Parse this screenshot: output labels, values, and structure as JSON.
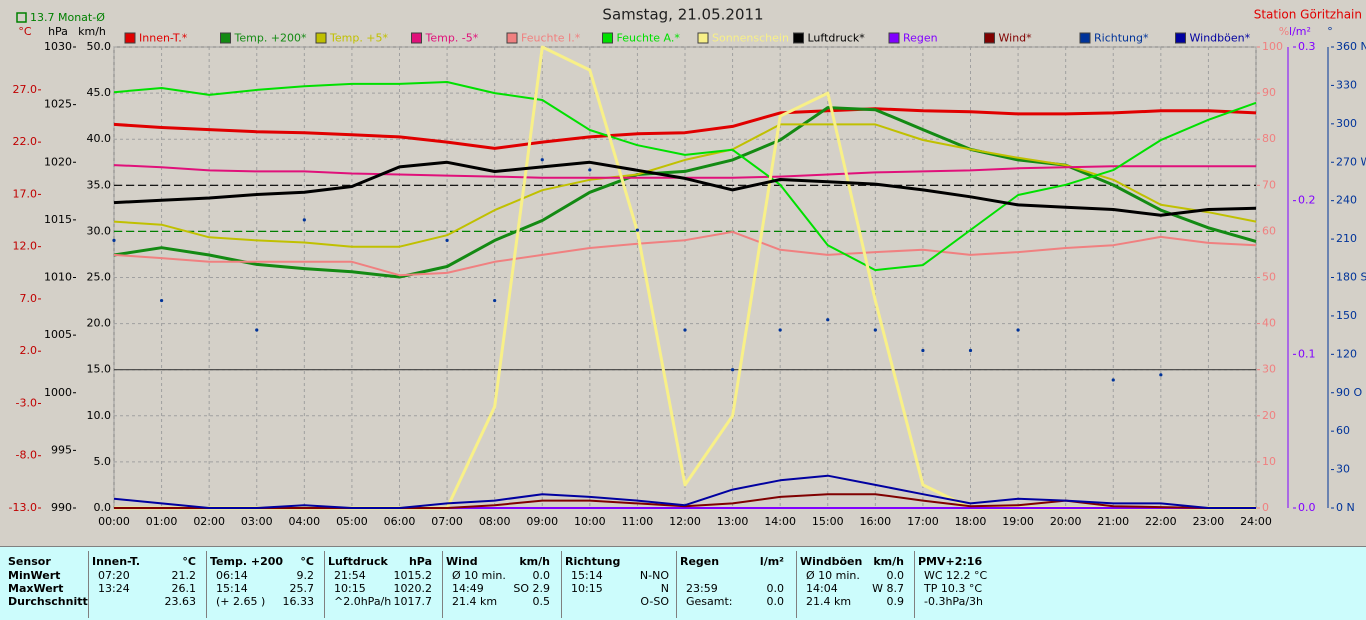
{
  "chart_data": {
    "type": "line",
    "title": "Samstag, 21.05.2011",
    "station": "Station Göritzhain",
    "annotation": "13.7 Monat-Ø",
    "annotation_color": "#008000",
    "grid": true,
    "xlim": [
      0,
      24
    ],
    "x": [
      0,
      1,
      2,
      3,
      4,
      5,
      6,
      7,
      8,
      9,
      10,
      11,
      12,
      13,
      14,
      15,
      16,
      17,
      18,
      19,
      20,
      21,
      22,
      23,
      24
    ],
    "xticks": [
      {
        "value": 0,
        "label": "00:00"
      },
      {
        "value": 1,
        "label": "01:00"
      },
      {
        "value": 2,
        "label": "02:00"
      },
      {
        "value": 3,
        "label": "03:00"
      },
      {
        "value": 4,
        "label": "04:00"
      },
      {
        "value": 5,
        "label": "05:00"
      },
      {
        "value": 6,
        "label": "06:00"
      },
      {
        "value": 7,
        "label": "07:00"
      },
      {
        "value": 8,
        "label": "08:00"
      },
      {
        "value": 9,
        "label": "09:00"
      },
      {
        "value": 10,
        "label": "10:00"
      },
      {
        "value": 11,
        "label": "11:00"
      },
      {
        "value": 12,
        "label": "12:00"
      },
      {
        "value": 13,
        "label": "13:00"
      },
      {
        "value": 14,
        "label": "14:00"
      },
      {
        "value": 15,
        "label": "15:00"
      },
      {
        "value": 16,
        "label": "16:00"
      },
      {
        "value": 17,
        "label": "17:00"
      },
      {
        "value": 18,
        "label": "18:00"
      },
      {
        "value": 19,
        "label": "19:00"
      },
      {
        "value": 20,
        "label": "20:00"
      },
      {
        "value": 21,
        "label": "21:00"
      },
      {
        "value": 22,
        "label": "22:00"
      },
      {
        "value": 23,
        "label": "23:00"
      },
      {
        "value": 24,
        "label": "24:00"
      }
    ],
    "axes": {
      "temp": {
        "label": "°C",
        "color": "#c00000",
        "side": "left",
        "lim": [
          -13,
          31.1
        ],
        "ticks": [
          {
            "value": -13,
            "label": "-13.0"
          },
          {
            "value": -8,
            "label": "-8.0"
          },
          {
            "value": -3,
            "label": "-3.0"
          },
          {
            "value": 2,
            "label": "2.0"
          },
          {
            "value": 7,
            "label": "7.0"
          },
          {
            "value": 12,
            "label": "12.0"
          },
          {
            "value": 17,
            "label": "17.0"
          },
          {
            "value": 22,
            "label": "22.0"
          },
          {
            "value": 27,
            "label": "27.0"
          }
        ]
      },
      "hpa": {
        "label": "hPa",
        "color": "#000000",
        "side": "left",
        "lim": [
          990,
          1030
        ],
        "ticks": [
          990,
          995,
          1000,
          1005,
          1010,
          1015,
          1020,
          1025,
          1030
        ]
      },
      "kmh": {
        "label": "km/h",
        "color": "#000000",
        "side": "left",
        "lim": [
          0,
          50
        ],
        "grid": true,
        "ticks": [
          {
            "value": 0,
            "label": "0.0"
          },
          {
            "value": 5,
            "label": "5.0"
          },
          {
            "value": 10,
            "label": "10.0"
          },
          {
            "value": 15,
            "label": "15.0"
          },
          {
            "value": 20,
            "label": "20.0"
          },
          {
            "value": 25,
            "label": "25.0"
          },
          {
            "value": 30,
            "label": "30.0"
          },
          {
            "value": 35,
            "label": "35.0"
          },
          {
            "value": 40,
            "label": "40.0"
          },
          {
            "value": 45,
            "label": "45.0"
          },
          {
            "value": 50,
            "label": "50.0"
          }
        ]
      },
      "pct": {
        "label": "%",
        "color": "#f08080",
        "side": "right",
        "lim": [
          0,
          100
        ],
        "ticks": [
          0,
          10,
          20,
          30,
          40,
          50,
          60,
          70,
          80,
          90,
          100
        ]
      },
      "rain": {
        "label": "l/m²",
        "color": "#8000ff",
        "side": "right",
        "lim": [
          0,
          0.3
        ],
        "ticks": [
          {
            "value": 0,
            "label": "0.0"
          },
          0.1,
          0.2,
          0.3
        ]
      },
      "dir": {
        "label": "°",
        "color": "#003399",
        "side": "right",
        "lim": [
          0,
          360
        ],
        "ticks": [
          {
            "value": 0,
            "label": "0 N"
          },
          30,
          60,
          {
            "value": 90,
            "label": "90 O"
          },
          120,
          150,
          {
            "value": 180,
            "label": "180 S"
          },
          210,
          240,
          {
            "value": 270,
            "label": "270 W"
          },
          300,
          330,
          {
            "value": 360,
            "label": "360 N"
          }
        ]
      }
    },
    "hlines": [
      {
        "axis": "kmh",
        "value": 35,
        "color": "#000000",
        "dashed": true
      },
      {
        "axis": "kmh",
        "value": 30,
        "color": "#008000",
        "dashed": true
      },
      {
        "axis": "kmh",
        "value": 15,
        "color": "#404040",
        "dashed": false
      }
    ],
    "series": [
      {
        "name": "Innen-T.*",
        "color": "#e00000",
        "axis": "temp",
        "width": 3,
        "values": [
          23.7,
          23.4,
          23.2,
          23.0,
          22.9,
          22.7,
          22.5,
          22.0,
          21.4,
          22.0,
          22.5,
          22.8,
          22.9,
          23.5,
          24.8,
          25.0,
          25.2,
          25.0,
          24.9,
          24.7,
          24.7,
          24.8,
          25.0,
          25.0,
          24.8
        ]
      },
      {
        "name": "Temp. +200*",
        "color": "#138a13",
        "axis": "temp",
        "width": 3,
        "values": [
          11.2,
          11.9,
          11.2,
          10.3,
          9.9,
          9.6,
          9.1,
          10.1,
          12.6,
          14.5,
          17.2,
          18.9,
          19.2,
          20.3,
          22.2,
          25.3,
          25.1,
          23.2,
          21.3,
          20.3,
          19.8,
          17.9,
          15.5,
          13.8,
          12.5
        ]
      },
      {
        "name": "Temp. +5*",
        "color": "#c0c000",
        "axis": "temp",
        "width": 2,
        "values": [
          14.4,
          14.1,
          12.9,
          12.6,
          12.4,
          12.0,
          12.0,
          13.1,
          15.5,
          17.4,
          18.4,
          18.9,
          20.3,
          21.3,
          23.7,
          23.7,
          23.7,
          22.2,
          21.3,
          20.5,
          19.8,
          18.4,
          16.0,
          15.3,
          14.4
        ]
      },
      {
        "name": "Temp. -5*",
        "color": "#e0107a",
        "axis": "temp",
        "width": 2,
        "values": [
          19.8,
          19.6,
          19.3,
          19.2,
          19.2,
          19.0,
          18.9,
          18.8,
          18.7,
          18.6,
          18.6,
          18.6,
          18.6,
          18.6,
          18.7,
          18.9,
          19.1,
          19.2,
          19.3,
          19.5,
          19.6,
          19.7,
          19.7,
          19.7,
          19.7
        ]
      },
      {
        "name": "Feuchte I.*",
        "color": "#f08080",
        "axis": "pct",
        "width": 2,
        "values": [
          54.9,
          54.2,
          53.4,
          53.4,
          53.4,
          53.4,
          50.5,
          51.0,
          53.4,
          54.9,
          56.4,
          57.3,
          58.1,
          59.9,
          56.0,
          54.9,
          55.5,
          56.0,
          54.9,
          55.5,
          56.4,
          57.0,
          58.8,
          57.5,
          57.0
        ]
      },
      {
        "name": "Feuchte A.*",
        "color": "#00e000",
        "axis": "pct",
        "width": 2,
        "values": [
          90.2,
          91.1,
          89.6,
          90.7,
          91.5,
          92.0,
          92.0,
          92.4,
          90.0,
          88.5,
          82.0,
          78.7,
          76.6,
          77.7,
          70.1,
          57.0,
          51.6,
          52.7,
          60.3,
          67.9,
          70.1,
          73.3,
          79.8,
          84.2,
          87.9
        ]
      },
      {
        "name": "Sonnenschein",
        "color": "#f8f088",
        "axis": "pct",
        "width": 3,
        "values": [
          0,
          0,
          0,
          0,
          0,
          0,
          0,
          0,
          22,
          100,
          95,
          60,
          5,
          20,
          85,
          90,
          45,
          5,
          0,
          0,
          0,
          0,
          0,
          0,
          0
        ]
      },
      {
        "name": "Luftdruck*",
        "color": "#000000",
        "axis": "hpa",
        "width": 3,
        "values": [
          1016.5,
          1016.7,
          1016.9,
          1017.2,
          1017.4,
          1017.9,
          1019.6,
          1020.0,
          1019.2,
          1019.6,
          1020.0,
          1019.3,
          1018.6,
          1017.6,
          1018.5,
          1018.3,
          1018.1,
          1017.6,
          1017.0,
          1016.3,
          1016.1,
          1015.9,
          1015.4,
          1015.9,
          1016.0
        ]
      },
      {
        "name": "Regen",
        "color": "#8000ff",
        "axis": "rain",
        "width": 2,
        "values": [
          0,
          0,
          0,
          0,
          0,
          0,
          0,
          0,
          0,
          0,
          0,
          0,
          0,
          0,
          0,
          0,
          0,
          0,
          0,
          0,
          0,
          0,
          0,
          0,
          0
        ]
      },
      {
        "name": "Wind*",
        "color": "#800000",
        "axis": "kmh",
        "width": 2,
        "values": [
          0,
          0,
          0,
          0,
          0,
          0,
          0,
          0,
          0.3,
          0.8,
          0.8,
          0.5,
          0.2,
          0.5,
          1.2,
          1.5,
          1.5,
          0.8,
          0.2,
          0.3,
          0.8,
          0.2,
          0.1,
          0,
          0
        ]
      },
      {
        "name": "Richtung*",
        "color": "#003399",
        "axis": "dir",
        "style": "dots",
        "values": [
          209,
          162,
          null,
          139,
          225,
          null,
          null,
          209,
          162,
          272,
          264,
          217,
          139,
          108,
          139,
          147,
          139,
          123,
          123,
          139,
          null,
          100,
          104,
          null,
          null
        ]
      },
      {
        "name": "Windböen*",
        "color": "#0000a0",
        "axis": "kmh",
        "width": 2,
        "values": [
          1.0,
          0.5,
          0,
          0,
          0.3,
          0,
          0,
          0.5,
          0.8,
          1.5,
          1.2,
          0.8,
          0.3,
          2.0,
          3.0,
          3.5,
          2.5,
          1.5,
          0.5,
          1.0,
          0.8,
          0.5,
          0.5,
          0,
          0
        ]
      }
    ]
  },
  "table": {
    "sensor": {
      "name": "Sensor",
      "rows": [
        "MinWert",
        "MaxWert",
        "Durchschnitt"
      ]
    },
    "columns": [
      {
        "name": "Innen-T.",
        "unit": "°C",
        "rows": [
          [
            "07:20",
            "21.2"
          ],
          [
            "13:24",
            "26.1"
          ],
          [
            null,
            "23.63"
          ]
        ]
      },
      {
        "name": "Temp. +200",
        "unit": "°C",
        "rows": [
          [
            "06:14",
            "9.2"
          ],
          [
            "15:14",
            "25.7"
          ],
          [
            "(+ 2.65 )",
            "16.33"
          ]
        ]
      },
      {
        "name": "Luftdruck",
        "unit": "hPa",
        "rows": [
          [
            "21:54",
            "1015.2"
          ],
          [
            "10:15",
            "1020.2"
          ],
          [
            "^2.0hPa/h",
            "1017.7"
          ]
        ]
      },
      {
        "name": "Wind",
        "unit": "km/h",
        "rows": [
          [
            "Ø 10 min.",
            "0.0"
          ],
          [
            "14:49",
            "SO 2.9"
          ],
          [
            "21.4 km",
            "0.5"
          ]
        ]
      },
      {
        "name": "Richtung",
        "unit": null,
        "rows": [
          [
            "15:14",
            "N-NO"
          ],
          [
            "10:15",
            "N"
          ],
          [
            null,
            "O-SO"
          ]
        ]
      },
      {
        "name": "Regen",
        "unit": "l/m²",
        "rows": [
          [
            null,
            null
          ],
          [
            "23:59",
            "0.0"
          ],
          [
            "Gesamt:",
            "0.0"
          ]
        ]
      },
      {
        "name": "Windböen",
        "unit": "km/h",
        "rows": [
          [
            "Ø 10 min.",
            "0.0"
          ],
          [
            "14:04",
            "W 8.7"
          ],
          [
            "21.4 km",
            "0.9"
          ]
        ]
      },
      {
        "name": "PMV+2:16",
        "unit": null,
        "rows": [
          [
            "WC 12.2 °C",
            null
          ],
          [
            "TP 10.3 °C",
            null
          ],
          [
            "-0.3hPa/3h",
            null
          ]
        ]
      }
    ]
  }
}
